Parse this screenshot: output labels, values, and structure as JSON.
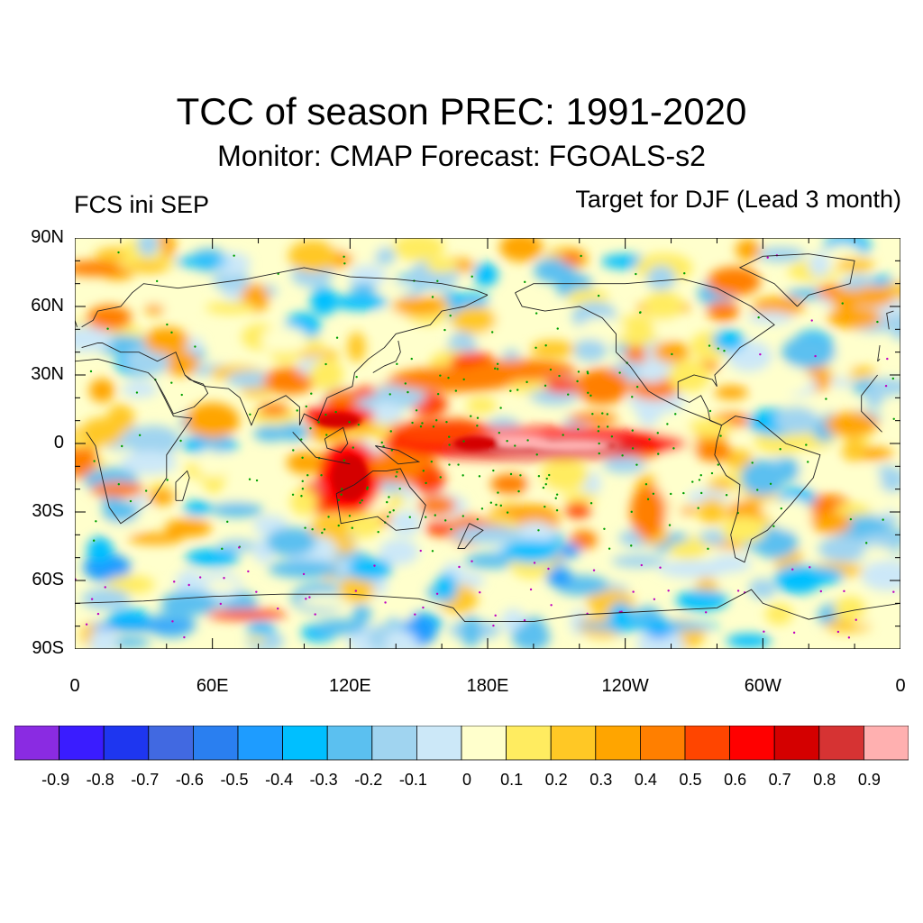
{
  "header": {
    "title": "TCC of season PREC: 1991-2020",
    "subtitle": "Monitor: CMAP   Forecast: FGOALS-s2",
    "left_label": "FCS ini SEP",
    "right_label": "Target for DJF (Lead 3 month)"
  },
  "axes": {
    "lat_ticks": [
      "90N",
      "60N",
      "30N",
      "0",
      "30S",
      "60S",
      "90S"
    ],
    "lon_ticks": [
      "0",
      "60E",
      "120E",
      "180E",
      "120W",
      "60W",
      "0"
    ]
  },
  "colorbar": {
    "colors": [
      "#8a2be2",
      "#3a1cff",
      "#1e36f0",
      "#4169e1",
      "#2a7ff0",
      "#1e9cff",
      "#00bfff",
      "#5bc0f0",
      "#a0d4f0",
      "#cce8f8",
      "#ffffcc",
      "#ffec60",
      "#ffc825",
      "#ffa500",
      "#ff7f00",
      "#ff4500",
      "#ff0000",
      "#d40000",
      "#d63333",
      "#ffb0b0"
    ],
    "labels": [
      "-0.9",
      "-0.8",
      "-0.7",
      "-0.6",
      "-0.5",
      "-0.4",
      "-0.3",
      "-0.2",
      "-0.1",
      "0",
      "0.1",
      "0.2",
      "0.3",
      "0.4",
      "0.5",
      "0.6",
      "0.7",
      "0.8",
      "0.9"
    ]
  },
  "map_features": [
    {
      "name": "equatorial-pacific-max",
      "lon": 195,
      "lat": 0,
      "value": 0.9
    },
    {
      "name": "maritime-continent-high",
      "lon": 120,
      "lat": -15,
      "value": 0.7
    },
    {
      "name": "north-pacific-band",
      "lon": 160,
      "lat": 30,
      "value": 0.5
    },
    {
      "name": "south-indian-ocean-negative",
      "lon": 70,
      "lat": -50,
      "value": -0.4
    },
    {
      "name": "antarctic-negative",
      "lon": 40,
      "lat": -80,
      "value": -0.5
    },
    {
      "name": "north-atlantic-negative",
      "lon": -40,
      "lat": 40,
      "value": -0.4
    }
  ]
}
